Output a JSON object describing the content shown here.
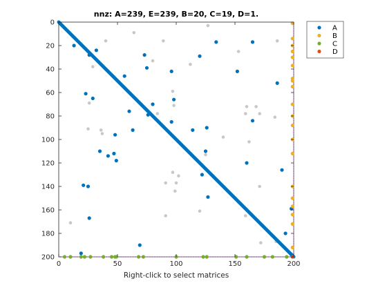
{
  "chart_data": {
    "type": "scatter",
    "title": "nnz: A=239, E=239, B=20, C=19, D=1.",
    "xlabel": "Right-click to select matrices",
    "ylabel": "",
    "xlim": [
      0,
      200
    ],
    "ylim": [
      0,
      200
    ],
    "y_reversed": true,
    "grid": false,
    "x_ticks": [
      0,
      50,
      100,
      150,
      200
    ],
    "y_ticks": [
      0,
      20,
      40,
      60,
      80,
      100,
      120,
      140,
      160,
      180,
      200
    ],
    "legend_position": "top-right",
    "diagonal": {
      "name": "A",
      "from": [
        0,
        0
      ],
      "to": [
        200,
        200
      ],
      "color": "#0072BD"
    },
    "reference_lines": {
      "x": 200,
      "y": 200,
      "color": "#c040c0",
      "style": "dotted"
    },
    "series": [
      {
        "name": "A",
        "color": "#0072BD",
        "points": [
          [
            13,
            20
          ],
          [
            26,
            28
          ],
          [
            32,
            24
          ],
          [
            56,
            46
          ],
          [
            73,
            28
          ],
          [
            75,
            39
          ],
          [
            96,
            42
          ],
          [
            120,
            29
          ],
          [
            134,
            17
          ],
          [
            152,
            42
          ],
          [
            165,
            17
          ],
          [
            186,
            52
          ],
          [
            23,
            61
          ],
          [
            29,
            65
          ],
          [
            60,
            76
          ],
          [
            80,
            70
          ],
          [
            98,
            66
          ],
          [
            76,
            79
          ],
          [
            96,
            85
          ],
          [
            114,
            92
          ],
          [
            126,
            90
          ],
          [
            165,
            84
          ],
          [
            63,
            92
          ],
          [
            48,
            96
          ],
          [
            35,
            110
          ],
          [
            42,
            114
          ],
          [
            47,
            112
          ],
          [
            49,
            118
          ],
          [
            125,
            110
          ],
          [
            160,
            120
          ],
          [
            190,
            126
          ],
          [
            122,
            130
          ],
          [
            21,
            139
          ],
          [
            25,
            140
          ],
          [
            127,
            149
          ],
          [
            26,
            167
          ],
          [
            198,
            159
          ],
          [
            193,
            180
          ],
          [
            69,
            190
          ],
          [
            19,
            197
          ],
          [
            198,
            198
          ]
        ]
      },
      {
        "name": "E",
        "color": "#c8c8c8",
        "points": [
          [
            10,
            171
          ],
          [
            32,
            32
          ],
          [
            40,
            16
          ],
          [
            64,
            9
          ],
          [
            80,
            33
          ],
          [
            89,
            16
          ],
          [
            112,
            36
          ],
          [
            127,
            3
          ],
          [
            153,
            25
          ],
          [
            186,
            16
          ],
          [
            29,
            38
          ],
          [
            26,
            69
          ],
          [
            36,
            92
          ],
          [
            37,
            95
          ],
          [
            25,
            91
          ],
          [
            84,
            78
          ],
          [
            97,
            59
          ],
          [
            98,
            71
          ],
          [
            140,
            98
          ],
          [
            160,
            72
          ],
          [
            168,
            72
          ],
          [
            171,
            78
          ],
          [
            184,
            81
          ],
          [
            159,
            78
          ],
          [
            162,
            102
          ],
          [
            102,
            131
          ],
          [
            97,
            128
          ],
          [
            91,
            137
          ],
          [
            100,
            137
          ],
          [
            99,
            144
          ],
          [
            171,
            140
          ],
          [
            125,
            113
          ],
          [
            120,
            161
          ],
          [
            91,
            165
          ],
          [
            172,
            188
          ],
          [
            185,
            187
          ],
          [
            159,
            165
          ]
        ]
      },
      {
        "name": "B",
        "color": "#EDB120",
        "points": [
          [
            199,
            1
          ],
          [
            199,
            14
          ],
          [
            199,
            20
          ],
          [
            199,
            25
          ],
          [
            199,
            30
          ],
          [
            199,
            37
          ],
          [
            199,
            48
          ],
          [
            199,
            50
          ],
          [
            199,
            55
          ],
          [
            199,
            70
          ],
          [
            199,
            80
          ],
          [
            199,
            88
          ],
          [
            199,
            100
          ],
          [
            199,
            112
          ],
          [
            199,
            140
          ],
          [
            199,
            150
          ],
          [
            199,
            157
          ],
          [
            199,
            164
          ],
          [
            199,
            172
          ],
          [
            199,
            192
          ]
        ]
      },
      {
        "name": "C",
        "color": "#77AC30",
        "points": [
          [
            5,
            200
          ],
          [
            10,
            200
          ],
          [
            19,
            200
          ],
          [
            22,
            200
          ],
          [
            27,
            200
          ],
          [
            38,
            200
          ],
          [
            45,
            200
          ],
          [
            48,
            200
          ],
          [
            49,
            200
          ],
          [
            68,
            200
          ],
          [
            72,
            200
          ],
          [
            100,
            200
          ],
          [
            123,
            200
          ],
          [
            126,
            200
          ],
          [
            151,
            200
          ],
          [
            160,
            200
          ],
          [
            175,
            200
          ],
          [
            182,
            200
          ],
          [
            194,
            200
          ]
        ]
      },
      {
        "name": "D",
        "color": "#D95319",
        "points": [
          [
            199,
            200
          ]
        ]
      }
    ]
  },
  "legend": [
    {
      "label": "A",
      "color": "#0072BD"
    },
    {
      "label": "B",
      "color": "#EDB120"
    },
    {
      "label": "C",
      "color": "#77AC30"
    },
    {
      "label": "D",
      "color": "#D95319"
    }
  ],
  "colors": {
    "axis": "#262626",
    "background": "#ffffff"
  }
}
